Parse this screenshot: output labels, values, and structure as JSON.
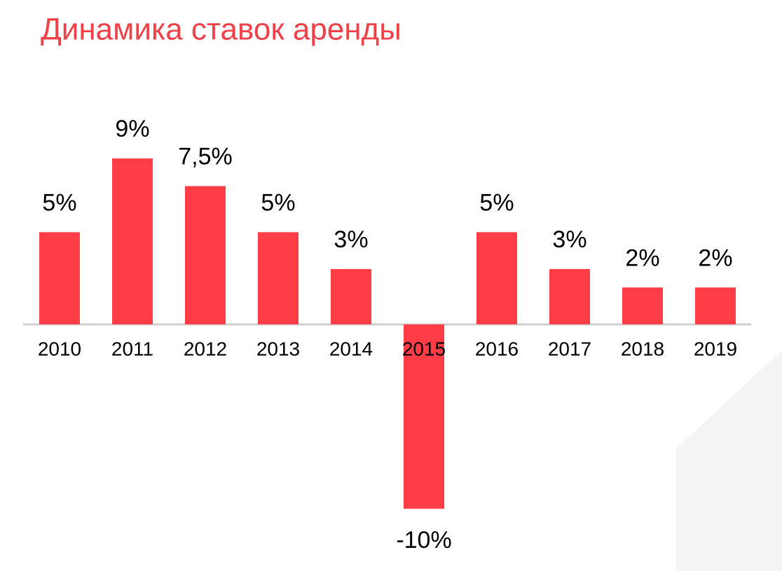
{
  "chart_data": {
    "type": "bar",
    "title": "Динамика ставок аренды",
    "categories": [
      "2010",
      "2011",
      "2012",
      "2013",
      "2014",
      "2015",
      "2016",
      "2017",
      "2018",
      "2019"
    ],
    "values": [
      5,
      9,
      7.5,
      5,
      3,
      -10,
      5,
      3,
      2,
      2
    ],
    "value_labels": [
      "5%",
      "9%",
      "7,5%",
      "5%",
      "3%",
      "-10%",
      "5%",
      "3%",
      "2%",
      "2%"
    ],
    "color": "#ff3d47"
  }
}
